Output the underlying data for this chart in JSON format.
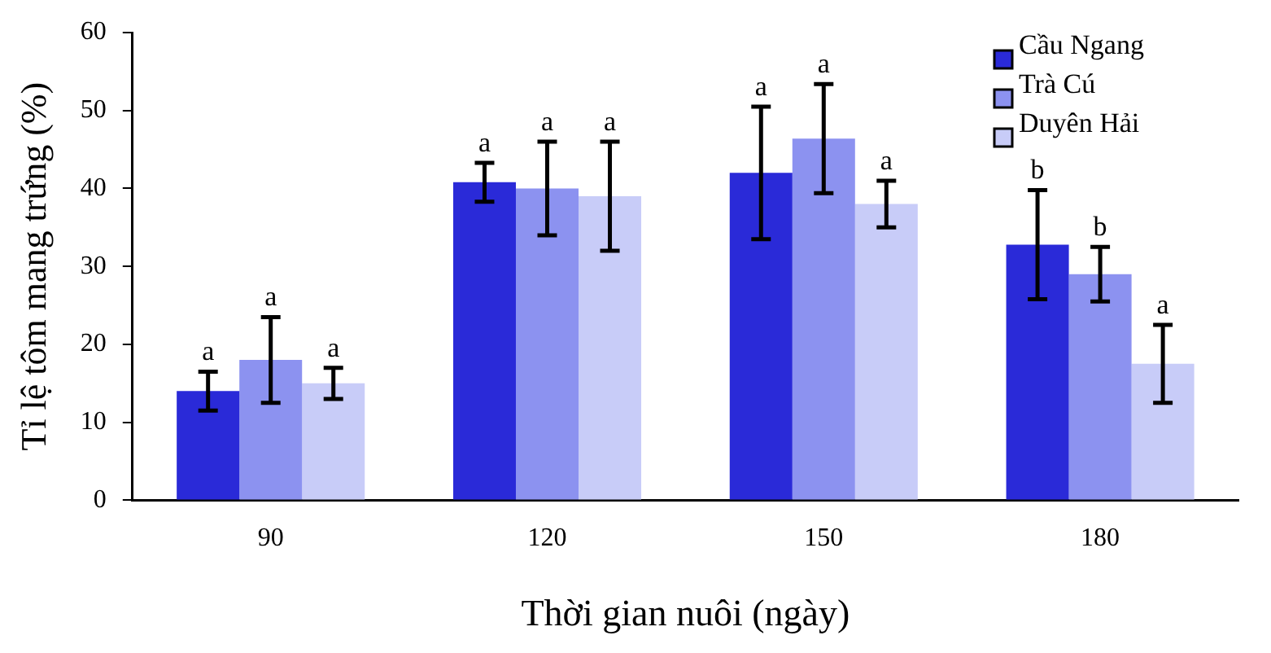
{
  "chart_data": {
    "type": "bar",
    "xlabel": "Thời gian nuôi (ngày)",
    "ylabel": "Tỉ lệ tôm mang trứng (%)",
    "categories": [
      "90",
      "120",
      "150",
      "180"
    ],
    "series": [
      {
        "name": "Cầu Ngang",
        "color": "#2a2ad8",
        "values": [
          14,
          40.8,
          42,
          32.8
        ],
        "errors": [
          2.5,
          2.5,
          8.5,
          7
        ]
      },
      {
        "name": "Trà Cú",
        "color": "#8c92f0",
        "values": [
          18,
          40,
          46.4,
          29
        ],
        "errors": [
          5.5,
          6,
          7,
          3.5
        ]
      },
      {
        "name": "Duyên Hải",
        "color": "#c8ccf8",
        "values": [
          15,
          39,
          38,
          17.5
        ],
        "errors": [
          2,
          7,
          3,
          5
        ]
      }
    ],
    "ylim": [
      0,
      60
    ],
    "yticks": [
      0,
      10,
      20,
      30,
      40,
      50,
      60
    ],
    "grid": false,
    "legend": "top right",
    "annotations": [
      "a",
      "a",
      "a",
      "a",
      "a",
      "a",
      "a",
      "a",
      "a",
      "b",
      "b",
      "a"
    ]
  }
}
